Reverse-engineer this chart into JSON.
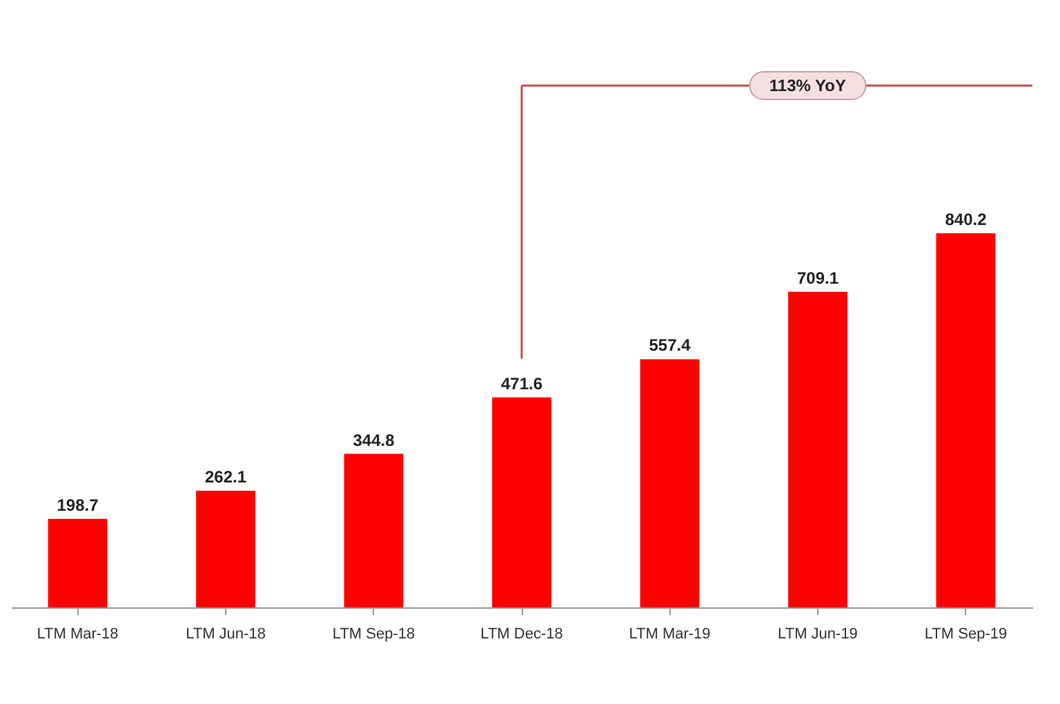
{
  "chart_data": {
    "type": "bar",
    "categories": [
      "LTM Mar-18",
      "LTM Jun-18",
      "LTM Sep-18",
      "LTM Dec-18",
      "LTM Mar-19",
      "LTM Jun-19",
      "LTM Sep-19"
    ],
    "values": [
      198.7,
      262.1,
      344.8,
      471.6,
      557.4,
      709.1,
      840.2
    ],
    "color": "#ff0000",
    "data_labels": true,
    "annotations": [
      "113% YoY"
    ]
  }
}
